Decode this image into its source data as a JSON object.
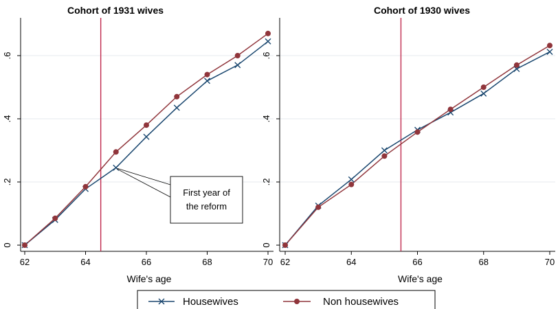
{
  "colors": {
    "housewives": "#1a476f",
    "non_housewives": "#90353b",
    "reform_line": "#c0264a",
    "grid": "#e4eaee",
    "axis": "#000000"
  },
  "legend": {
    "items": [
      {
        "label": "Housewives",
        "marker": "x",
        "color_key": "housewives"
      },
      {
        "label": "Non housewives",
        "marker": "dot",
        "color_key": "non_housewives"
      }
    ]
  },
  "chart_data": [
    {
      "type": "line",
      "title": "Cohort of 1931 wives",
      "xlabel": "Wife's age",
      "ylabel": "",
      "x": [
        62,
        63,
        64,
        65,
        66,
        67,
        68,
        69,
        70
      ],
      "xticks": [
        62,
        64,
        66,
        68,
        70
      ],
      "yticks": [
        0,
        0.2,
        0.4,
        0.6
      ],
      "ytick_labels": [
        "0",
        ".2",
        ".4",
        ".6"
      ],
      "xlim": [
        62,
        70
      ],
      "ylim": [
        -0.02,
        0.72
      ],
      "grid": true,
      "reform_x": 64.5,
      "annotation": {
        "lines": [
          "First year of",
          "the reform"
        ],
        "target_x": 65,
        "target_y": 0.245
      },
      "series": [
        {
          "name": "Housewives",
          "values": [
            0.0,
            0.08,
            0.178,
            0.245,
            0.343,
            0.435,
            0.52,
            0.57,
            0.645
          ]
        },
        {
          "name": "Non housewives",
          "values": [
            0.0,
            0.085,
            0.185,
            0.295,
            0.38,
            0.47,
            0.54,
            0.6,
            0.67
          ]
        }
      ]
    },
    {
      "type": "line",
      "title": "Cohort of 1930 wives",
      "xlabel": "Wife's age",
      "ylabel": "",
      "x": [
        62,
        63,
        64,
        65,
        66,
        67,
        68,
        69,
        70
      ],
      "xticks": [
        62,
        64,
        66,
        68,
        70
      ],
      "yticks": [
        0,
        0.2,
        0.4,
        0.6
      ],
      "ytick_labels": [
        "0",
        ".2",
        ".4",
        ".6"
      ],
      "xlim": [
        62,
        70
      ],
      "ylim": [
        -0.02,
        0.72
      ],
      "grid": true,
      "reform_x": 65.5,
      "series": [
        {
          "name": "Housewives",
          "values": [
            0.0,
            0.125,
            0.208,
            0.3,
            0.365,
            0.42,
            0.48,
            0.558,
            0.612
          ]
        },
        {
          "name": "Non housewives",
          "values": [
            0.0,
            0.12,
            0.192,
            0.282,
            0.358,
            0.43,
            0.5,
            0.57,
            0.632
          ]
        }
      ]
    }
  ]
}
